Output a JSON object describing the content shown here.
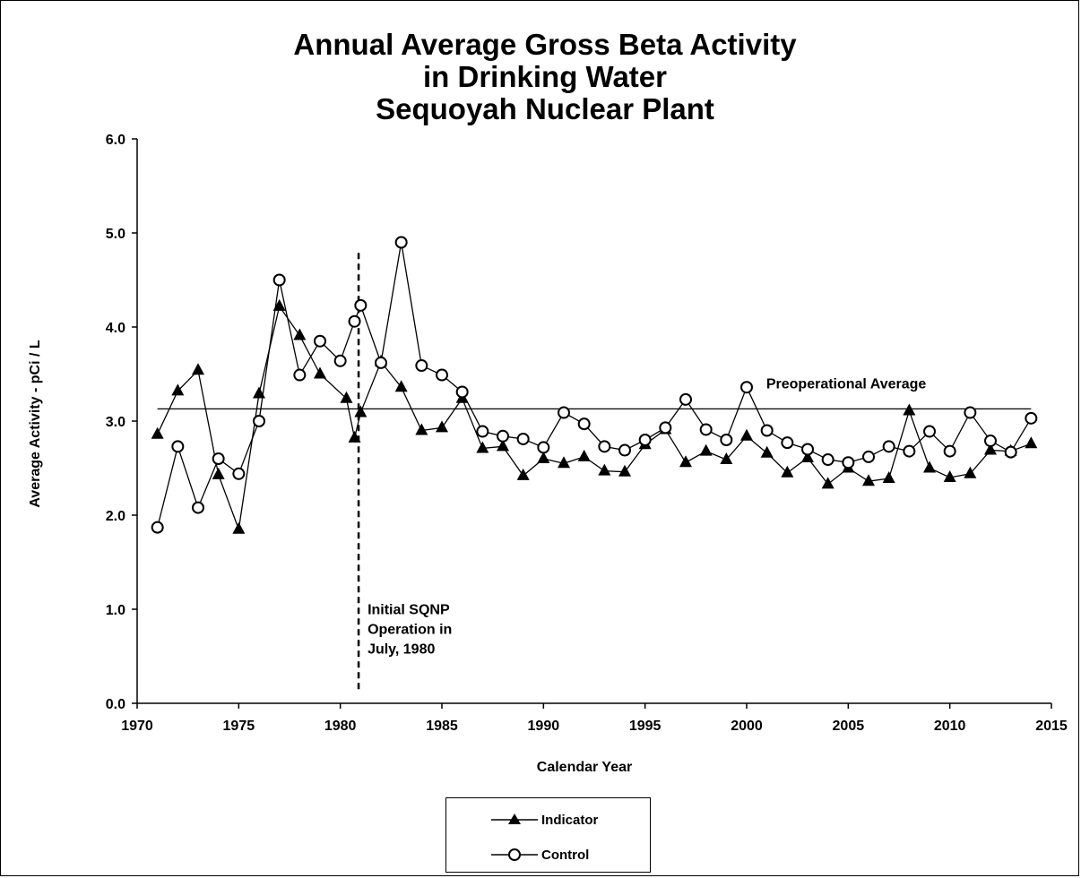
{
  "chart_data": {
    "type": "line",
    "title_lines": [
      "Annual Average Gross Beta Activity",
      "in Drinking Water",
      "Sequoyah Nuclear Plant"
    ],
    "xlabel": "Calendar Year",
    "ylabel": "Average Activity - pCi / L",
    "xlim": [
      1970,
      2015
    ],
    "ylim": [
      0,
      6
    ],
    "x_ticks": [
      "1970",
      "1975",
      "1980",
      "1985",
      "1990",
      "1995",
      "2000",
      "2005",
      "2010",
      "2015"
    ],
    "y_ticks": [
      "0.0",
      "1.0",
      "2.0",
      "3.0",
      "4.0",
      "5.0",
      "6.0"
    ],
    "grid": false,
    "legend_placement": "bottom-center",
    "series": [
      {
        "name": "Indicator",
        "marker": "filled-triangle",
        "color": "#000000",
        "points": [
          [
            1971,
            2.86
          ],
          [
            1972,
            3.32
          ],
          [
            1973,
            3.54
          ],
          [
            1974,
            2.43
          ],
          [
            1975,
            1.85
          ],
          [
            1976,
            3.29
          ],
          [
            1977,
            4.22
          ],
          [
            1978,
            3.91
          ],
          [
            1979,
            3.5
          ],
          [
            1980.3,
            3.24
          ],
          [
            1980.7,
            2.82
          ],
          [
            1981,
            3.09
          ],
          [
            1982,
            3.63
          ],
          [
            1983,
            3.36
          ],
          [
            1984,
            2.9
          ],
          [
            1985,
            2.93
          ],
          [
            1986,
            3.24
          ],
          [
            1987,
            2.71
          ],
          [
            1988,
            2.73
          ],
          [
            1989,
            2.42
          ],
          [
            1990,
            2.6
          ],
          [
            1991,
            2.55
          ],
          [
            1992,
            2.62
          ],
          [
            1993,
            2.47
          ],
          [
            1994,
            2.46
          ],
          [
            1995,
            2.75
          ],
          [
            1996,
            2.91
          ],
          [
            1997,
            2.56
          ],
          [
            1998,
            2.68
          ],
          [
            1999,
            2.59
          ],
          [
            2000,
            2.84
          ],
          [
            2001,
            2.66
          ],
          [
            2002,
            2.45
          ],
          [
            2003,
            2.61
          ],
          [
            2004,
            2.33
          ],
          [
            2005,
            2.5
          ],
          [
            2006,
            2.36
          ],
          [
            2007,
            2.39
          ],
          [
            2008,
            3.11
          ],
          [
            2009,
            2.5
          ],
          [
            2010,
            2.4
          ],
          [
            2011,
            2.44
          ],
          [
            2012,
            2.69
          ],
          [
            2013,
            2.68
          ],
          [
            2014,
            2.76
          ]
        ]
      },
      {
        "name": "Control",
        "marker": "open-circle",
        "color": "#000000",
        "points": [
          [
            1971,
            1.87
          ],
          [
            1972,
            2.73
          ],
          [
            1973,
            2.08
          ],
          [
            1974,
            2.6
          ],
          [
            1975,
            2.44
          ],
          [
            1976,
            3.0
          ],
          [
            1977,
            4.5
          ],
          [
            1978,
            3.49
          ],
          [
            1979,
            3.85
          ],
          [
            1980,
            3.64
          ],
          [
            1980.7,
            4.06
          ],
          [
            1981,
            4.23
          ],
          [
            1982,
            3.62
          ],
          [
            1983,
            4.9
          ],
          [
            1984,
            3.59
          ],
          [
            1985,
            3.49
          ],
          [
            1986,
            3.31
          ],
          [
            1987,
            2.89
          ],
          [
            1988,
            2.84
          ],
          [
            1989,
            2.81
          ],
          [
            1990,
            2.72
          ],
          [
            1991,
            3.09
          ],
          [
            1992,
            2.97
          ],
          [
            1993,
            2.73
          ],
          [
            1994,
            2.69
          ],
          [
            1995,
            2.8
          ],
          [
            1996,
            2.93
          ],
          [
            1997,
            3.23
          ],
          [
            1998,
            2.91
          ],
          [
            1999,
            2.8
          ],
          [
            2000,
            3.36
          ],
          [
            2001,
            2.9
          ],
          [
            2002,
            2.77
          ],
          [
            2003,
            2.7
          ],
          [
            2004,
            2.59
          ],
          [
            2005,
            2.56
          ],
          [
            2006,
            2.62
          ],
          [
            2007,
            2.73
          ],
          [
            2008,
            2.68
          ],
          [
            2009,
            2.89
          ],
          [
            2010,
            2.68
          ],
          [
            2011,
            3.09
          ],
          [
            2012,
            2.79
          ],
          [
            2013,
            2.67
          ],
          [
            2014,
            3.03
          ]
        ]
      }
    ],
    "reference_line": {
      "label": "Preoperational Average",
      "y": 3.13,
      "x_start": 1971,
      "x_end": 2014
    },
    "event_line": {
      "x": 1980.9,
      "y_start": 0.15,
      "y_end": 4.8,
      "label_lines": [
        "Initial SQNP",
        "Operation in",
        "July, 1980"
      ]
    }
  }
}
